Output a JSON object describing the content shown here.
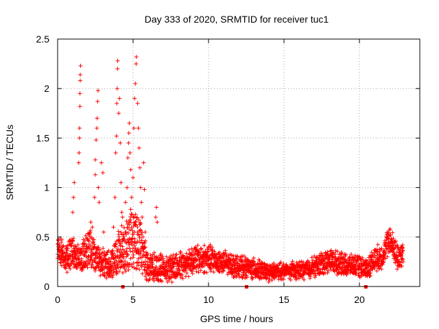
{
  "chart_data": {
    "type": "scatter",
    "title": "Day 333 of 2020, SRMTID for receiver tuc1",
    "xlabel": "GPS time / hours",
    "ylabel": "SRMTID / TECUs",
    "xlim": [
      0,
      24
    ],
    "ylim": [
      0,
      2.5
    ],
    "xticks": [
      0,
      5,
      10,
      15,
      20
    ],
    "xtick_labels": [
      "0",
      "5",
      "10",
      "15",
      "20"
    ],
    "yticks": [
      0,
      0.5,
      1,
      1.5,
      2,
      2.5
    ],
    "ytick_labels": [
      "0",
      "0.5",
      "1",
      "1.5",
      "2",
      "2.5"
    ],
    "grid": true,
    "marker": "+",
    "series_color": "#ff0000",
    "gap_markers_x": [
      4.3,
      12.5,
      20.4
    ],
    "envelope_anchors": [
      {
        "x": 0.0,
        "base": 0.4,
        "spread": 0.1
      },
      {
        "x": 0.5,
        "base": 0.28,
        "spread": 0.12
      },
      {
        "x": 1.0,
        "base": 0.35,
        "spread": 0.15
      },
      {
        "x": 1.5,
        "base": 0.25,
        "spread": 0.12
      },
      {
        "x": 2.0,
        "base": 0.4,
        "spread": 0.2
      },
      {
        "x": 2.5,
        "base": 0.3,
        "spread": 0.15
      },
      {
        "x": 3.0,
        "base": 0.25,
        "spread": 0.12
      },
      {
        "x": 3.5,
        "base": 0.2,
        "spread": 0.12
      },
      {
        "x": 4.0,
        "base": 0.35,
        "spread": 0.2
      },
      {
        "x": 4.5,
        "base": 0.4,
        "spread": 0.25
      },
      {
        "x": 5.0,
        "base": 0.5,
        "spread": 0.3
      },
      {
        "x": 5.5,
        "base": 0.4,
        "spread": 0.25
      },
      {
        "x": 6.0,
        "base": 0.2,
        "spread": 0.12
      },
      {
        "x": 7.0,
        "base": 0.18,
        "spread": 0.12
      },
      {
        "x": 8.0,
        "base": 0.2,
        "spread": 0.12
      },
      {
        "x": 9.0,
        "base": 0.28,
        "spread": 0.12
      },
      {
        "x": 10.0,
        "base": 0.28,
        "spread": 0.12
      },
      {
        "x": 11.0,
        "base": 0.24,
        "spread": 0.1
      },
      {
        "x": 12.0,
        "base": 0.2,
        "spread": 0.08
      },
      {
        "x": 13.0,
        "base": 0.18,
        "spread": 0.08
      },
      {
        "x": 14.0,
        "base": 0.14,
        "spread": 0.06
      },
      {
        "x": 15.0,
        "base": 0.16,
        "spread": 0.06
      },
      {
        "x": 16.0,
        "base": 0.16,
        "spread": 0.06
      },
      {
        "x": 17.0,
        "base": 0.2,
        "spread": 0.08
      },
      {
        "x": 18.0,
        "base": 0.26,
        "spread": 0.1
      },
      {
        "x": 19.0,
        "base": 0.22,
        "spread": 0.08
      },
      {
        "x": 20.0,
        "base": 0.2,
        "spread": 0.08
      },
      {
        "x": 20.5,
        "base": 0.18,
        "spread": 0.08
      },
      {
        "x": 21.0,
        "base": 0.28,
        "spread": 0.1
      },
      {
        "x": 21.5,
        "base": 0.3,
        "spread": 0.1
      },
      {
        "x": 22.0,
        "base": 0.48,
        "spread": 0.12
      },
      {
        "x": 22.5,
        "base": 0.3,
        "spread": 0.12
      },
      {
        "x": 22.9,
        "base": 0.32,
        "spread": 0.12
      }
    ],
    "spikes": [
      {
        "x": 1.0,
        "y": 0.75
      },
      {
        "x": 1.05,
        "y": 0.9
      },
      {
        "x": 1.1,
        "y": 1.05
      },
      {
        "x": 1.4,
        "y": 1.25
      },
      {
        "x": 1.42,
        "y": 1.35
      },
      {
        "x": 1.45,
        "y": 1.5
      },
      {
        "x": 1.45,
        "y": 1.6
      },
      {
        "x": 1.48,
        "y": 1.82
      },
      {
        "x": 1.48,
        "y": 1.95
      },
      {
        "x": 1.5,
        "y": 2.08
      },
      {
        "x": 1.5,
        "y": 2.14
      },
      {
        "x": 1.52,
        "y": 2.23
      },
      {
        "x": 2.2,
        "y": 0.65
      },
      {
        "x": 2.3,
        "y": 0.6
      },
      {
        "x": 2.45,
        "y": 0.9
      },
      {
        "x": 2.5,
        "y": 1.13
      },
      {
        "x": 2.5,
        "y": 1.28
      },
      {
        "x": 2.55,
        "y": 1.48
      },
      {
        "x": 2.6,
        "y": 1.6
      },
      {
        "x": 2.62,
        "y": 1.7
      },
      {
        "x": 2.65,
        "y": 1.87
      },
      {
        "x": 2.68,
        "y": 1.98
      },
      {
        "x": 2.7,
        "y": 1.0
      },
      {
        "x": 2.75,
        "y": 0.85
      },
      {
        "x": 2.9,
        "y": 1.25
      },
      {
        "x": 3.0,
        "y": 1.15
      },
      {
        "x": 3.05,
        "y": 0.55
      },
      {
        "x": 3.7,
        "y": 0.6
      },
      {
        "x": 3.8,
        "y": 0.9
      },
      {
        "x": 3.85,
        "y": 1.35
      },
      {
        "x": 3.9,
        "y": 1.52
      },
      {
        "x": 3.92,
        "y": 1.85
      },
      {
        "x": 3.95,
        "y": 2.0
      },
      {
        "x": 3.97,
        "y": 2.2
      },
      {
        "x": 3.98,
        "y": 2.28
      },
      {
        "x": 4.05,
        "y": 1.75
      },
      {
        "x": 4.1,
        "y": 1.9
      },
      {
        "x": 4.15,
        "y": 1.45
      },
      {
        "x": 4.2,
        "y": 1.05
      },
      {
        "x": 4.25,
        "y": 0.75
      },
      {
        "x": 4.3,
        "y": 0.7
      },
      {
        "x": 4.5,
        "y": 0.85
      },
      {
        "x": 4.6,
        "y": 1.0
      },
      {
        "x": 4.65,
        "y": 1.3
      },
      {
        "x": 4.7,
        "y": 1.45
      },
      {
        "x": 4.72,
        "y": 1.55
      },
      {
        "x": 4.75,
        "y": 1.65
      },
      {
        "x": 4.8,
        "y": 1.35
      },
      {
        "x": 4.85,
        "y": 1.18
      },
      {
        "x": 4.9,
        "y": 0.9
      },
      {
        "x": 5.0,
        "y": 1.1
      },
      {
        "x": 5.05,
        "y": 1.6
      },
      {
        "x": 5.1,
        "y": 1.9
      },
      {
        "x": 5.15,
        "y": 2.05
      },
      {
        "x": 5.2,
        "y": 2.25
      },
      {
        "x": 5.22,
        "y": 2.32
      },
      {
        "x": 5.3,
        "y": 1.85
      },
      {
        "x": 5.35,
        "y": 1.6
      },
      {
        "x": 5.4,
        "y": 1.4
      },
      {
        "x": 5.45,
        "y": 1.2
      },
      {
        "x": 5.5,
        "y": 1.0
      },
      {
        "x": 5.55,
        "y": 0.85
      },
      {
        "x": 5.6,
        "y": 0.7
      },
      {
        "x": 5.7,
        "y": 1.25
      },
      {
        "x": 5.75,
        "y": 0.98
      },
      {
        "x": 5.8,
        "y": 0.55
      },
      {
        "x": 6.5,
        "y": 0.7
      },
      {
        "x": 6.55,
        "y": 0.8
      },
      {
        "x": 6.6,
        "y": 0.65
      }
    ]
  }
}
